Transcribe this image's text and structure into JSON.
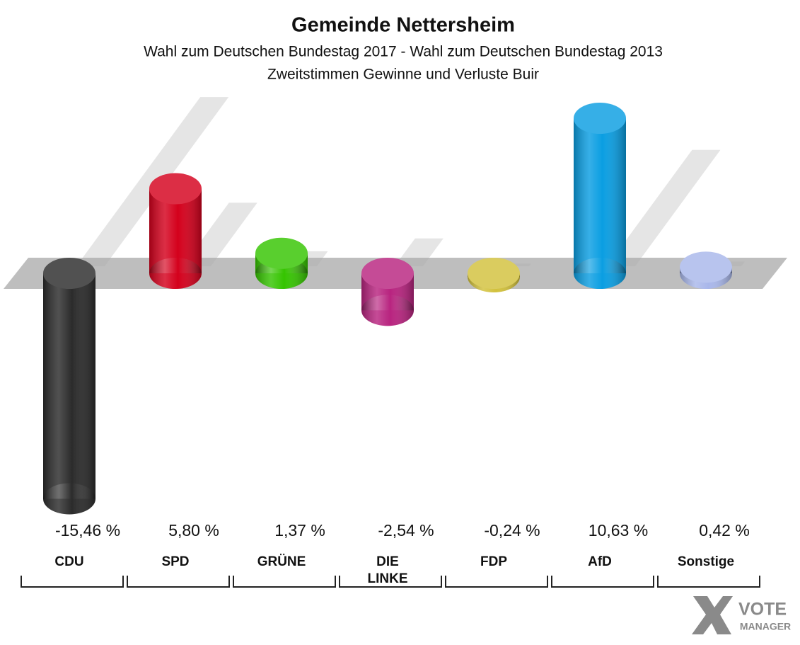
{
  "chart_data": {
    "type": "bar",
    "title": "Gemeinde Nettersheim",
    "subtitle": "Wahl zum Deutschen Bundestag 2017 - Wahl zum Deutschen Bundestag 2013",
    "subtitle2": "Zweitstimmen Gewinne und Verluste Buir",
    "categories": [
      "CDU",
      "SPD",
      "GRÜNE",
      "DIE LINKE",
      "FDP",
      "AfD",
      "Sonstige"
    ],
    "values": [
      -15.46,
      5.8,
      1.37,
      -2.54,
      -0.24,
      10.63,
      0.42
    ],
    "value_labels": [
      "-15,46 %",
      "5,80 %",
      "1,37 %",
      "-2,54 %",
      "-0,24 %",
      "10,63 %",
      "0,42 %"
    ],
    "colors": [
      "#2b2b2b",
      "#d4001c",
      "#35c400",
      "#b8237f",
      "#d2c13c",
      "#0a9ee2",
      "#a9b7ea"
    ],
    "logo": {
      "line1": "VOTE",
      "line2": "MANAGER"
    }
  }
}
